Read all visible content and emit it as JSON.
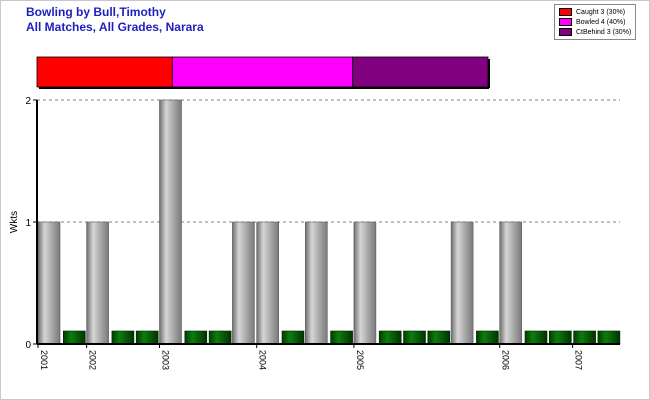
{
  "title": {
    "line1": "Bowling by Bull,Timothy",
    "line2": "All Matches, All Grades, Narara"
  },
  "legend": [
    {
      "label": "Caught 3 (30%)",
      "color": "#ff0000"
    },
    {
      "label": "Bowled 4 (40%)",
      "color": "#ff00ff"
    },
    {
      "label": "CtBehind 3 (30%)",
      "color": "#800080"
    }
  ],
  "chart_data": [
    {
      "type": "bar",
      "title": "",
      "note": "stacked horizontal summary bar",
      "categories": [
        "Caught",
        "Bowled",
        "CtBehind"
      ],
      "values": [
        3,
        4,
        3
      ],
      "colors": [
        "#ff0000",
        "#ff00ff",
        "#800080"
      ]
    },
    {
      "type": "bar",
      "ylabel": "Wkts",
      "ylim": [
        0,
        2
      ],
      "yticks": [
        0,
        1,
        2
      ],
      "grid": true,
      "values": [
        1,
        0,
        1,
        0,
        0,
        2,
        0,
        0,
        1,
        1,
        0,
        1,
        0,
        1,
        0,
        0,
        0,
        1,
        0,
        1,
        0,
        0,
        0,
        0
      ],
      "year_labels": [
        {
          "label": "2001",
          "index": 0
        },
        {
          "label": "2002",
          "index": 2
        },
        {
          "label": "2003",
          "index": 5
        },
        {
          "label": "2004",
          "index": 9
        },
        {
          "label": "2005",
          "index": 13
        },
        {
          "label": "2006",
          "index": 19
        },
        {
          "label": "2007",
          "index": 22
        }
      ],
      "bar_color": "#a0a0a0",
      "zero_color": "#0a6b0a"
    }
  ]
}
